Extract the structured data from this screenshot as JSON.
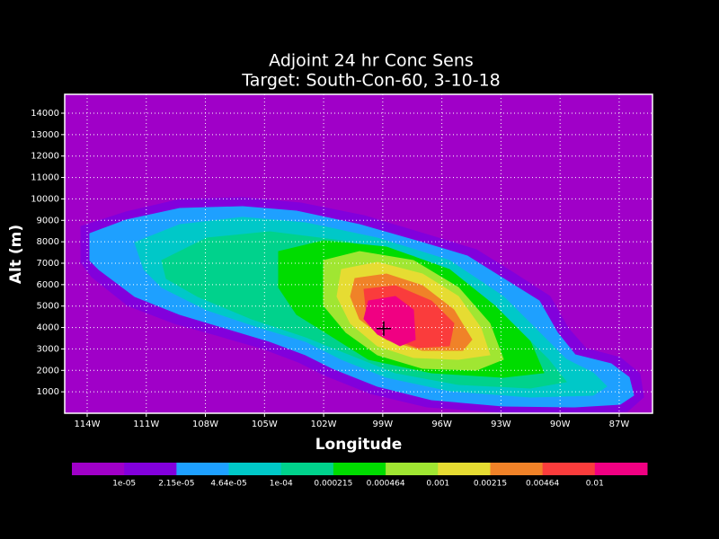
{
  "chart_data": {
    "type": "contour",
    "title": "Adjoint 24 hr Conc Sens",
    "subtitle": "Target: South-Con-60, 3-10-18",
    "xlabel": "Longitude",
    "ylabel": "Alt (m)",
    "xlim": [
      -115.14,
      -85.31
    ],
    "ylim": [
      0,
      14880
    ],
    "xticks": [
      {
        "value": -114,
        "label": "114W"
      },
      {
        "value": -111,
        "label": "111W"
      },
      {
        "value": -108,
        "label": "108W"
      },
      {
        "value": -105,
        "label": "105W"
      },
      {
        "value": -102,
        "label": "102W"
      },
      {
        "value": -99,
        "label": "99W"
      },
      {
        "value": -96,
        "label": "96W"
      },
      {
        "value": -93,
        "label": "93W"
      },
      {
        "value": -90,
        "label": "90W"
      },
      {
        "value": -87,
        "label": "87W"
      }
    ],
    "yticks": [
      1000,
      2000,
      3000,
      4000,
      5000,
      6000,
      7000,
      8000,
      9000,
      10000,
      11000,
      12000,
      13000,
      14000
    ],
    "grid": true,
    "levels": [
      {
        "value": 1e-05,
        "label": "1e-05"
      },
      {
        "value": 2.15e-05,
        "label": "2.15e-05"
      },
      {
        "value": 4.64e-05,
        "label": "4.64e-05"
      },
      {
        "value": 0.0001,
        "label": "1e-04"
      },
      0.000215,
      0.000464,
      0.001,
      0.00215,
      0.00464,
      0.01
    ],
    "colors": [
      "#a000c8",
      "#8200dc",
      "#1ea0ff",
      "#00c8c8",
      "#00d28c",
      "#00dc00",
      "#a0e632",
      "#e6dc32",
      "#f08228",
      "#fa3c3c",
      "#f00082"
    ],
    "target": [
      -98.95,
      3950
    ]
  }
}
